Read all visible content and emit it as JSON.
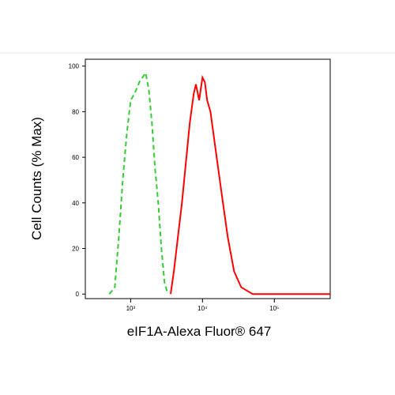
{
  "chart_data": {
    "type": "line",
    "x_label": "eIF1A-Alexa Fluor® 647",
    "y_label": "Cell Counts (% Max)",
    "x_scale": "log",
    "xlim": [
      234,
      600000
    ],
    "ylim": [
      -2,
      103
    ],
    "xticks": [
      {
        "value": 1000,
        "label": "10³"
      },
      {
        "value": 10000,
        "label": "10⁴"
      },
      {
        "value": 100000,
        "label": "10⁵"
      }
    ],
    "yticks": [
      0,
      20,
      40,
      60,
      80,
      100
    ],
    "series": [
      {
        "color": "#33cc33",
        "style": "dashed",
        "x": [
          505,
          602,
          684,
          777,
          883,
          1000,
          1135,
          1321,
          1462,
          1617,
          1789,
          1980,
          2190,
          2423,
          2681,
          2966,
          3282
        ],
        "values": [
          0,
          3,
          25,
          50,
          70,
          85,
          88,
          93,
          95,
          97,
          90,
          75,
          55,
          40,
          20,
          5,
          0
        ]
      },
      {
        "color": "#ff0000",
        "style": "solid",
        "x": [
          3600,
          4000,
          5180,
          6650,
          7560,
          8100,
          9000,
          10000,
          10800,
          11600,
          12900,
          15000,
          18300,
          22500,
          27500,
          34600,
          44000,
          50000,
          600000
        ],
        "values": [
          0,
          10,
          40,
          75,
          88,
          92,
          85,
          95,
          93,
          85,
          80,
          65,
          45,
          25,
          10,
          3,
          1,
          0,
          0
        ]
      }
    ]
  }
}
